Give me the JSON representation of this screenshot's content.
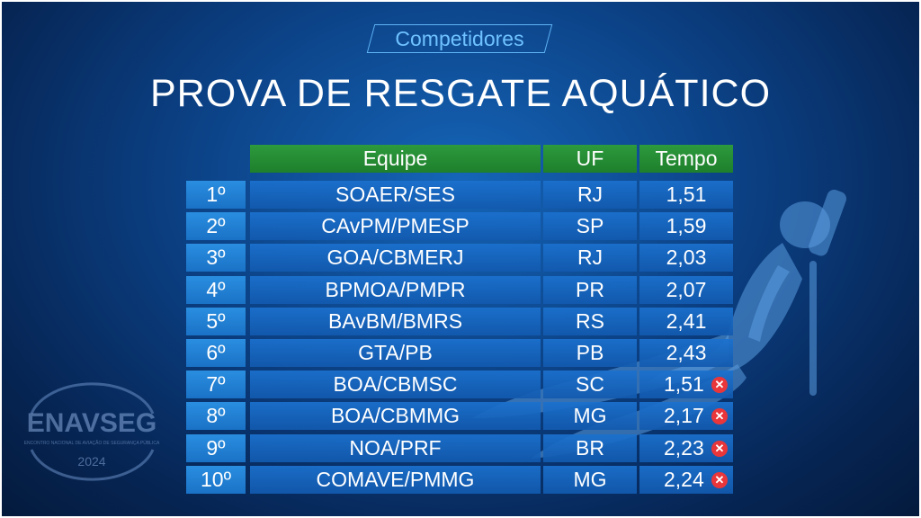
{
  "header": {
    "subtitle": "Competidores",
    "title": "PROVA DE RESGATE AQUÁTICO"
  },
  "table": {
    "columns": {
      "team": "Equipe",
      "state": "UF",
      "time": "Tempo"
    },
    "rows": [
      {
        "rank": "1º",
        "team": "SOAER/SES",
        "state": "RJ",
        "time": "1,51",
        "flag": false
      },
      {
        "rank": "2º",
        "team": "CAvPM/PMESP",
        "state": "SP",
        "time": "1,59",
        "flag": false
      },
      {
        "rank": "3º",
        "team": "GOA/CBMERJ",
        "state": "RJ",
        "time": "2,03",
        "flag": false
      },
      {
        "rank": "4º",
        "team": "BPMOA/PMPR",
        "state": "PR",
        "time": "2,07",
        "flag": false
      },
      {
        "rank": "5º",
        "team": "BAvBM/BMRS",
        "state": "RS",
        "time": "2,41",
        "flag": false
      },
      {
        "rank": "6º",
        "team": "GTA/PB",
        "state": "PB",
        "time": "2,43",
        "flag": false
      },
      {
        "rank": "7º",
        "team": "BOA/CBMSC",
        "state": "SC",
        "time": "1,51",
        "flag": true
      },
      {
        "rank": "8º",
        "team": "BOA/CBMMG",
        "state": "MG",
        "time": "2,17",
        "flag": true
      },
      {
        "rank": "9º",
        "team": "NOA/PRF",
        "state": "BR",
        "time": "2,23",
        "flag": true
      },
      {
        "rank": "10º",
        "team": "COMAVE/PMMG",
        "state": "MG",
        "time": "2,24",
        "flag": true
      }
    ]
  },
  "logo": {
    "name": "ENAVSEG",
    "tagline": "ENCONTRO NACIONAL DE AVIAÇÃO DE SEGURANÇA PÚBLICA",
    "year": "2024"
  },
  "icons": {
    "flag_icon": "x-circle-icon",
    "decoration": "diver-silhouette-icon"
  },
  "colors": {
    "header_green": "#2d9a3d",
    "row_blue": "#1b71ce",
    "flag_red": "#e8363a",
    "subtitle_blue": "#6fc2ff"
  }
}
